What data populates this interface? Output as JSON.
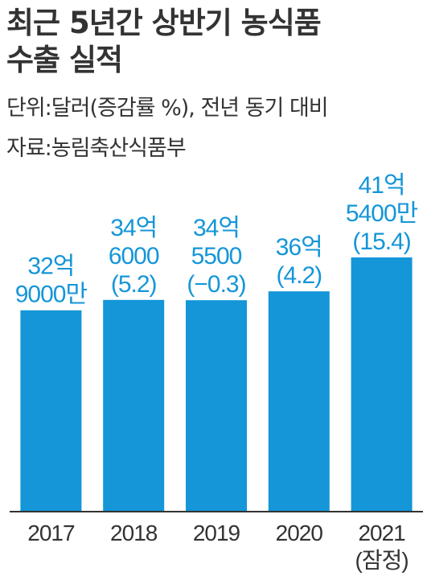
{
  "header": {
    "title_line1": "최근 5년간 상반기 농식품",
    "title_line2": "수출 실적",
    "unit": "단위:달러(증감률 %), 전년 동기 대비",
    "source": "자료:농림축산식품부"
  },
  "colors": {
    "bar": "#1496d8",
    "label": "#1496d8",
    "axis": "#333333",
    "text": "#333333"
  },
  "chart_data": {
    "type": "bar",
    "categories": [
      "2017",
      "2018",
      "2019",
      "2020",
      "2021"
    ],
    "category_sublabels": [
      "",
      "",
      "",
      "",
      "(잠정)"
    ],
    "values_usd_100m": [
      32.9,
      34.6,
      34.55,
      36.0,
      41.54
    ],
    "value_labels": [
      [
        "32억",
        "9000만"
      ],
      [
        "34억",
        "6000",
        "(5.2)"
      ],
      [
        "34억",
        "5500",
        "(−0.3)"
      ],
      [
        "36억",
        "(4.2)"
      ],
      [
        "41억",
        "5400만",
        "(15.4)"
      ]
    ],
    "growth_rate_pct": [
      null,
      5.2,
      -0.3,
      4.2,
      15.4
    ],
    "unit": "달러",
    "ylim": [
      0,
      50
    ]
  }
}
